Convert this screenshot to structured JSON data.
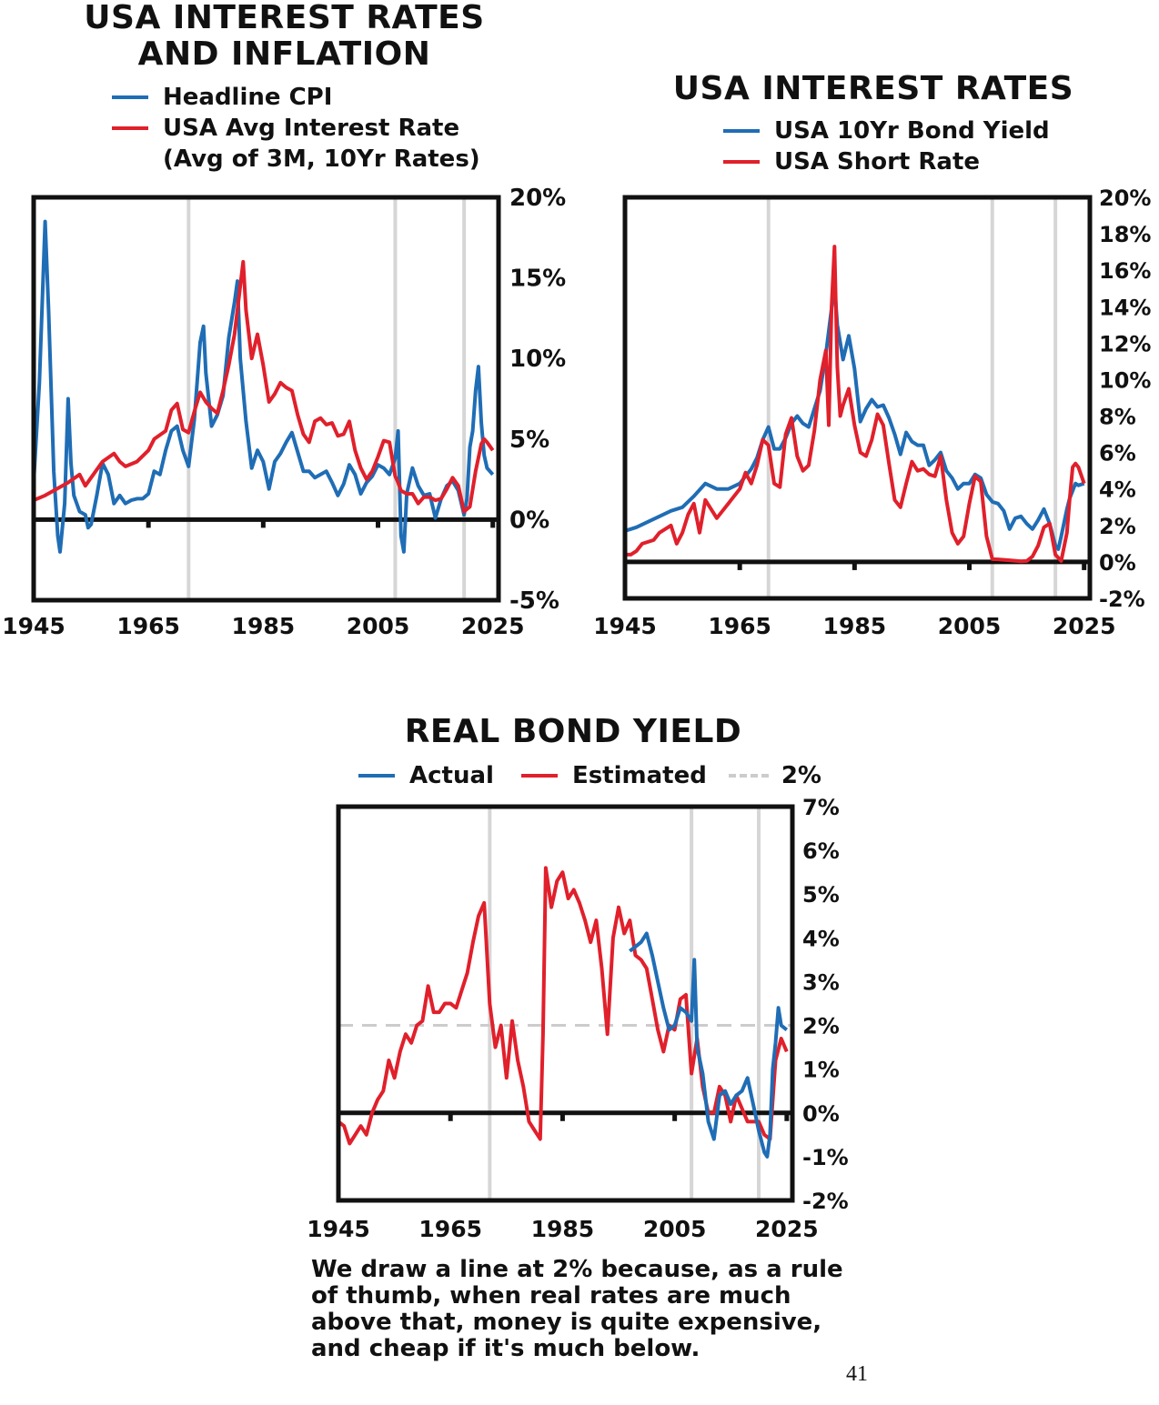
{
  "colors": {
    "blue": "#1f6db5",
    "red": "#e0202b",
    "grid": "#d6d6d6",
    "dash": "#cccccc",
    "axis": "#111111"
  },
  "charts": [
    {
      "title_line1": "USA INTEREST RATES",
      "title_line2": "AND INFLATION",
      "legend": [
        "Headline CPI",
        "USA Avg Interest Rate",
        "(Avg of 3M, 10Yr Rates)"
      ]
    },
    {
      "title_line1": "USA INTEREST RATES",
      "legend": [
        "USA 10Yr Bond Yield",
        "USA Short Rate"
      ]
    },
    {
      "title_line1": "REAL BOND YIELD",
      "legend": [
        "Actual",
        "Estimated",
        "2%"
      ]
    }
  ],
  "caption": "We draw a line at 2% because, as a rule of thumb, when real rates are much above that, money is quite expensive, and cheap if it's much below.",
  "page_number": "41",
  "chart_data": [
    {
      "type": "line",
      "title": "USA INTEREST RATES AND INFLATION",
      "x_ticks": [
        "1945",
        "1965",
        "1985",
        "2005",
        "2025"
      ],
      "y_ticks": [
        "-5%",
        "0%",
        "5%",
        "10%",
        "15%",
        "20%"
      ],
      "xlim": [
        1945,
        2026
      ],
      "ylim": [
        -5,
        20
      ],
      "vlines": [
        1972,
        2008,
        2020
      ],
      "legend_position": "top-left",
      "series": [
        {
          "name": "Headline CPI",
          "color": "blue",
          "x": [
            1945,
            1946,
            1947,
            1947.6,
            1948.5,
            1949.2,
            1949.6,
            1950.4,
            1951,
            1951.5,
            1952,
            1953,
            1954,
            1954.5,
            1955,
            1956,
            1957,
            1958,
            1959,
            1960,
            1961,
            1962,
            1963,
            1964,
            1965,
            1966,
            1967,
            1968,
            1969,
            1970,
            1971,
            1972,
            1973,
            1974,
            1974.6,
            1975,
            1976,
            1977,
            1978,
            1979,
            1980,
            1980.5,
            1981,
            1982,
            1983,
            1984,
            1985,
            1986,
            1987,
            1988,
            1989,
            1990,
            1991,
            1992,
            1993,
            1994,
            1995,
            1996,
            1997,
            1998,
            1999,
            2000,
            2001,
            2002,
            2003,
            2004,
            2005,
            2006,
            2007,
            2008,
            2008.5,
            2009,
            2009.5,
            2010,
            2011,
            2012,
            2013,
            2014,
            2015,
            2016,
            2017,
            2018,
            2019,
            2020,
            2020.5,
            2021,
            2021.5,
            2022,
            2022.5,
            2023,
            2023.5,
            2024,
            2025
          ],
          "y": [
            2.3,
            8.5,
            18.5,
            13,
            3,
            -1,
            -2,
            1,
            7.5,
            3.5,
            1.5,
            0.5,
            0.3,
            -0.5,
            -0.3,
            1.5,
            3.5,
            2.8,
            1,
            1.5,
            1,
            1.2,
            1.3,
            1.3,
            1.6,
            3,
            2.8,
            4.3,
            5.5,
            5.8,
            4.3,
            3.3,
            6.2,
            11,
            12,
            9.1,
            5.8,
            6.5,
            7.7,
            11.3,
            13.5,
            14.8,
            10,
            6.1,
            3.2,
            4.3,
            3.6,
            1.9,
            3.6,
            4.1,
            4.8,
            5.4,
            4.2,
            3,
            3,
            2.6,
            2.8,
            3,
            2.3,
            1.5,
            2.2,
            3.4,
            2.8,
            1.6,
            2.3,
            2.7,
            3.4,
            3.2,
            2.8,
            3.8,
            5.5,
            -1,
            -2,
            1.6,
            3.2,
            2.1,
            1.5,
            1.6,
            0.1,
            1.3,
            2.1,
            2.4,
            1.8,
            0.3,
            1.3,
            4.5,
            5.5,
            8,
            9.5,
            6,
            4,
            3.2,
            2.8
          ]
        },
        {
          "name": "USA Avg Interest Rate",
          "color": "red",
          "x": [
            1945,
            1947,
            1949,
            1951,
            1953,
            1954,
            1955,
            1957,
            1959,
            1960,
            1961,
            1963,
            1965,
            1966,
            1968,
            1969,
            1970,
            1971,
            1972,
            1973,
            1974,
            1975,
            1976,
            1977,
            1978,
            1979,
            1980,
            1981,
            1981.5,
            1982,
            1983,
            1984,
            1985,
            1986,
            1987,
            1988,
            1989,
            1990,
            1991,
            1992,
            1993,
            1994,
            1995,
            1996,
            1997,
            1998,
            1999,
            2000,
            2001,
            2002,
            2003,
            2004,
            2005,
            2006,
            2007,
            2008,
            2008.5,
            2009,
            2010,
            2011,
            2012,
            2013,
            2014,
            2015,
            2016,
            2017,
            2018,
            2019,
            2020,
            2021,
            2022,
            2023,
            2023.5,
            2024,
            2025
          ],
          "y": [
            1.2,
            1.5,
            1.9,
            2.3,
            2.8,
            2.1,
            2.6,
            3.6,
            4.1,
            3.6,
            3.3,
            3.6,
            4.3,
            5,
            5.5,
            6.8,
            7.2,
            5.6,
            5.4,
            6.7,
            7.9,
            7.3,
            6.9,
            6.6,
            8,
            9.6,
            11.5,
            14.5,
            16,
            13,
            10,
            11.5,
            9.6,
            7.3,
            7.8,
            8.5,
            8.2,
            8,
            6.5,
            5.3,
            4.8,
            6.1,
            6.3,
            5.9,
            6,
            5.2,
            5.3,
            6.1,
            4.3,
            3.2,
            2.5,
            3,
            3.9,
            4.9,
            4.8,
            2.7,
            2.3,
            1.8,
            1.6,
            1.6,
            1,
            1.4,
            1.4,
            1.2,
            1.3,
            1.9,
            2.6,
            2.1,
            0.5,
            0.8,
            3,
            4.7,
            5,
            4.8,
            4.3
          ]
        }
      ]
    },
    {
      "type": "line",
      "title": "USA INTEREST RATES",
      "x_ticks": [
        "1945",
        "1965",
        "1985",
        "2005",
        "2025"
      ],
      "y_ticks": [
        "-2%",
        "0%",
        "2%",
        "4%",
        "6%",
        "8%",
        "10%",
        "12%",
        "14%",
        "16%",
        "18%",
        "20%"
      ],
      "xlim": [
        1945,
        2026
      ],
      "ylim": [
        -2,
        20
      ],
      "vlines": [
        1970,
        2009,
        2020
      ],
      "legend_position": "top-center",
      "series": [
        {
          "name": "USA 10Yr Bond Yield",
          "color": "blue",
          "x": [
            1945,
            1947,
            1949,
            1951,
            1953,
            1955,
            1957,
            1959,
            1961,
            1963,
            1965,
            1967,
            1968,
            1969,
            1970,
            1971,
            1972,
            1973,
            1974,
            1975,
            1976,
            1977,
            1978,
            1979,
            1980,
            1981,
            1981.5,
            1982,
            1983,
            1984,
            1985,
            1986,
            1987,
            1988,
            1989,
            1990,
            1991,
            1992,
            1993,
            1994,
            1995,
            1996,
            1997,
            1998,
            1999,
            2000,
            2001,
            2002,
            2003,
            2004,
            2005,
            2006,
            2007,
            2008,
            2009,
            2010,
            2011,
            2012,
            2013,
            2014,
            2015,
            2016,
            2017,
            2018,
            2019,
            2020,
            2020.5,
            2021,
            2022,
            2022.5,
            2023,
            2023.5,
            2024,
            2025
          ],
          "y": [
            1.7,
            1.9,
            2.2,
            2.5,
            2.8,
            3,
            3.6,
            4.3,
            4,
            4,
            4.3,
            5.1,
            5.7,
            6.7,
            7.4,
            6.2,
            6.2,
            6.8,
            7.6,
            8,
            7.6,
            7.4,
            8.4,
            9.4,
            11.4,
            13.9,
            15.2,
            13,
            11.1,
            12.4,
            10.6,
            7.7,
            8.4,
            8.9,
            8.5,
            8.6,
            7.9,
            7,
            5.9,
            7.1,
            6.6,
            6.4,
            6.4,
            5.3,
            5.6,
            6,
            5,
            4.6,
            4,
            4.3,
            4.3,
            4.8,
            4.6,
            3.7,
            3.3,
            3.2,
            2.8,
            1.8,
            2.4,
            2.5,
            2.1,
            1.8,
            2.3,
            2.9,
            2.1,
            0.9,
            0.7,
            1.4,
            2.9,
            3.5,
            3.9,
            4.3,
            4.2,
            4.3
          ]
        },
        {
          "name": "USA Short Rate",
          "color": "red",
          "x": [
            1945,
            1946,
            1947,
            1948,
            1949,
            1950,
            1951,
            1952,
            1953,
            1954,
            1955,
            1956,
            1957,
            1958,
            1959,
            1960,
            1961,
            1962,
            1963,
            1964,
            1965,
            1966,
            1967,
            1968,
            1969,
            1970,
            1971,
            1972,
            1973,
            1974,
            1975,
            1976,
            1977,
            1978,
            1979,
            1980,
            1980.5,
            1981,
            1981.5,
            1982,
            1982.5,
            1983,
            1984,
            1985,
            1986,
            1987,
            1988,
            1989,
            1990,
            1991,
            1992,
            1993,
            1994,
            1995,
            1996,
            1997,
            1998,
            1999,
            2000,
            2001,
            2002,
            2003,
            2004,
            2005,
            2006,
            2007,
            2008,
            2009,
            2010,
            2012,
            2014,
            2015,
            2016,
            2017,
            2018,
            2019,
            2020,
            2021,
            2022,
            2022.5,
            2023,
            2023.5,
            2024,
            2025
          ],
          "y": [
            0.4,
            0.4,
            0.6,
            1,
            1.1,
            1.2,
            1.6,
            1.8,
            2,
            1,
            1.6,
            2.6,
            3.2,
            1.6,
            3.4,
            2.9,
            2.4,
            2.8,
            3.2,
            3.6,
            4,
            4.9,
            4.3,
            5.3,
            6.7,
            6.4,
            4.3,
            4.1,
            7,
            7.9,
            5.8,
            5,
            5.3,
            7.2,
            10,
            11.6,
            7.5,
            14,
            17.3,
            10.7,
            8,
            8.6,
            9.5,
            7.5,
            6,
            5.8,
            6.7,
            8.1,
            7.5,
            5.4,
            3.4,
            3,
            4.3,
            5.5,
            5,
            5.1,
            4.8,
            4.7,
            5.8,
            3.4,
            1.6,
            1,
            1.4,
            3.2,
            4.7,
            4.4,
            1.4,
            0.15,
            0.14,
            0.09,
            0.03,
            0.05,
            0.3,
            0.9,
            1.9,
            2.1,
            0.4,
            0.05,
            1.6,
            3.5,
            5.2,
            5.4,
            5.2,
            4.3
          ]
        }
      ]
    },
    {
      "type": "line",
      "title": "REAL BOND YIELD",
      "x_ticks": [
        "1945",
        "1965",
        "1985",
        "2005",
        "2025"
      ],
      "y_ticks": [
        "-2%",
        "-1%",
        "0%",
        "1%",
        "2%",
        "3%",
        "4%",
        "5%",
        "6%",
        "7%"
      ],
      "xlim": [
        1945,
        2026
      ],
      "ylim": [
        -2,
        7
      ],
      "vlines": [
        1972,
        2008,
        2020
      ],
      "hline": 2,
      "legend_position": "top-center",
      "series": [
        {
          "name": "Estimated",
          "color": "red",
          "x": [
            1945,
            1946,
            1947,
            1948,
            1949,
            1950,
            1951,
            1952,
            1953,
            1954,
            1955,
            1956,
            1957,
            1958,
            1959,
            1960,
            1961,
            1962,
            1963,
            1964,
            1965,
            1966,
            1967,
            1968,
            1969,
            1970,
            1971,
            1972,
            1973,
            1974,
            1975,
            1976,
            1977,
            1978,
            1979,
            1980,
            1981,
            1981.5,
            1982,
            1983,
            1984,
            1985,
            1986,
            1987,
            1988,
            1989,
            1990,
            1991,
            1992,
            1993,
            1994,
            1995,
            1996,
            1997,
            1998,
            1999,
            2000,
            2001,
            2002,
            2003,
            2004,
            2005,
            2006,
            2007,
            2008,
            2009,
            2010,
            2011,
            2012,
            2013,
            2014,
            2015,
            2016,
            2017,
            2018,
            2019,
            2020,
            2021,
            2022,
            2023,
            2024,
            2025
          ],
          "y": [
            -0.2,
            -0.3,
            -0.7,
            -0.5,
            -0.3,
            -0.5,
            0,
            0.3,
            0.5,
            1.2,
            0.8,
            1.4,
            1.8,
            1.6,
            2,
            2.1,
            2.9,
            2.3,
            2.3,
            2.5,
            2.5,
            2.4,
            2.8,
            3.2,
            3.9,
            4.5,
            4.8,
            2.5,
            1.5,
            2,
            0.8,
            2.1,
            1.2,
            0.6,
            -0.2,
            -0.4,
            -0.6,
            1.8,
            5.6,
            4.7,
            5.3,
            5.5,
            4.9,
            5.1,
            4.8,
            4.4,
            3.9,
            4.4,
            3.3,
            1.8,
            4,
            4.7,
            4.1,
            4.4,
            3.6,
            3.5,
            3.3,
            2.6,
            1.9,
            1.4,
            2,
            1.9,
            2.6,
            2.7,
            0.9,
            1.7,
            0.6,
            0,
            0,
            0.6,
            0.4,
            -0.2,
            0.4,
            0.1,
            -0.2,
            -0.2,
            -0.2,
            -0.5,
            -0.6,
            1.2,
            1.7,
            1.4
          ]
        },
        {
          "name": "Actual",
          "color": "blue",
          "x": [
            1997,
            1998,
            1999,
            2000,
            2001,
            2002,
            2003,
            2004,
            2005,
            2006,
            2007,
            2008,
            2008.5,
            2009,
            2010,
            2011,
            2012,
            2013,
            2014,
            2015,
            2016,
            2017,
            2018,
            2019,
            2020,
            2021,
            2021.5,
            2022,
            2022.5,
            2023,
            2023.5,
            2024,
            2025
          ],
          "y": [
            3.7,
            3.8,
            3.9,
            4.1,
            3.6,
            3,
            2.4,
            1.9,
            2,
            2.4,
            2.3,
            2.1,
            3.5,
            1.5,
            0.9,
            -0.2,
            -0.6,
            0.4,
            0.5,
            0.2,
            0.4,
            0.5,
            0.8,
            0.2,
            -0.4,
            -0.9,
            -1,
            -0.5,
            1,
            1.6,
            2.4,
            2,
            1.9
          ]
        }
      ]
    }
  ]
}
